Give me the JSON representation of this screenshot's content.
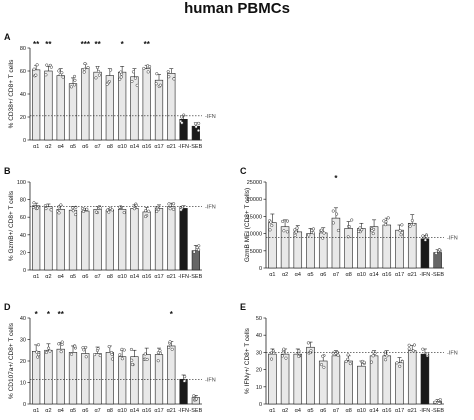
{
  "figure_title": "human PBMCs",
  "colors": {
    "bar_light": "#e8e8e8",
    "bar_dark": "#1a1a1a",
    "bar_mid": "#666666",
    "edge": "#222222"
  },
  "chart_data": [
    {
      "panel": "A",
      "type": "bar",
      "ylabel": "% CD38+/ CD8+ T cells",
      "ylim": [
        0,
        80
      ],
      "yticks": [
        0,
        20,
        40,
        60,
        80
      ],
      "ytick_labels": [
        "0",
        "20",
        "40",
        "60",
        "80"
      ],
      "categories": [
        "α1",
        "α2",
        "α4",
        "α5",
        "α6",
        "α7",
        "α8",
        "α10",
        "α14",
        "α16",
        "α17",
        "α21",
        "-IFN",
        "-SEB"
      ],
      "values": [
        61,
        60,
        56,
        49,
        62,
        59,
        56,
        59,
        55,
        62,
        52,
        58,
        18,
        12
      ],
      "errors": [
        4,
        4,
        6,
        5,
        4,
        5,
        6,
        5,
        7,
        3,
        5,
        4,
        3,
        3
      ],
      "bar_styles": [
        "light",
        "light",
        "light",
        "light",
        "light",
        "light",
        "light",
        "light",
        "light",
        "light",
        "light",
        "light",
        "dark",
        "dark"
      ],
      "significance": [
        "**",
        "**",
        "",
        "",
        "***",
        "**",
        "",
        "*",
        "",
        "**",
        "",
        "",
        "",
        ""
      ],
      "reference_line": {
        "value": 21,
        "label": "-IFN"
      },
      "legend": ""
    },
    {
      "panel": "B",
      "type": "bar",
      "ylabel": "% GzmB+/ CD8+ T cells",
      "ylim": [
        0,
        100
      ],
      "yticks": [
        0,
        20,
        40,
        60,
        80,
        100
      ],
      "ytick_labels": [
        "0",
        "20",
        "40",
        "60",
        "80",
        "100"
      ],
      "categories": [
        "α1",
        "α2",
        "α4",
        "α5",
        "α6",
        "α7",
        "α8",
        "α10",
        "α14",
        "α16",
        "α17",
        "α21",
        "-IFN",
        "-SEB"
      ],
      "values": [
        73,
        72,
        69,
        68,
        67,
        69,
        68,
        69,
        70,
        66,
        70,
        72,
        70,
        22
      ],
      "errors": [
        3,
        3,
        4,
        4,
        3,
        3,
        2,
        3,
        4,
        5,
        4,
        4,
        3,
        6
      ],
      "bar_styles": [
        "light",
        "light",
        "light",
        "light",
        "light",
        "light",
        "light",
        "light",
        "light",
        "light",
        "light",
        "light",
        "dark",
        "mid"
      ],
      "significance": [
        "",
        "",
        "",
        "",
        "",
        "",
        "",
        "",
        "",
        "",
        "",
        "",
        "",
        ""
      ],
      "reference_line": {
        "value": 72,
        "label": "-IFN"
      },
      "legend": ""
    },
    {
      "panel": "C",
      "type": "bar",
      "ylabel": "GzmB MFI (CD8+ T cells)",
      "ylim": [
        0,
        25000
      ],
      "yticks": [
        0,
        5000,
        10000,
        15000,
        20000,
        25000
      ],
      "ytick_labels": [
        "0",
        "5000",
        "10000",
        "15000",
        "20000",
        "25000"
      ],
      "categories": [
        "α1",
        "α2",
        "α4",
        "α5",
        "α6",
        "α7",
        "α8",
        "α10",
        "α14",
        "α16",
        "α17",
        "α21",
        "-IFN",
        "-SEB"
      ],
      "values": [
        13200,
        12000,
        10500,
        10000,
        10200,
        14500,
        11500,
        11500,
        12000,
        12500,
        11000,
        13000,
        8500,
        4500
      ],
      "errors": [
        2500,
        2000,
        1800,
        1500,
        1500,
        3000,
        2000,
        1500,
        2000,
        2000,
        1500,
        2500,
        1000,
        800
      ],
      "bar_styles": [
        "light",
        "light",
        "light",
        "light",
        "light",
        "light",
        "light",
        "light",
        "light",
        "light",
        "light",
        "light",
        "dark",
        "mid"
      ],
      "significance": [
        "",
        "",
        "",
        "",
        "",
        "*",
        "",
        "",
        "",
        "",
        "",
        "",
        "",
        ""
      ],
      "reference_line": {
        "value": 8800,
        "label": "-IFN"
      },
      "legend": ""
    },
    {
      "panel": "D",
      "type": "bar",
      "ylabel": "% CD107a+/ CD8+ T cells",
      "ylim": [
        0,
        40
      ],
      "yticks": [
        0,
        10,
        20,
        30,
        40
      ],
      "ytick_labels": [
        "0",
        "10",
        "20",
        "30",
        "40"
      ],
      "categories": [
        "α1",
        "α2",
        "α4",
        "α5",
        "α6",
        "α7",
        "α8",
        "α10",
        "α14",
        "α16",
        "α17",
        "α21",
        "-IFN",
        "-SEB"
      ],
      "values": [
        24.5,
        25,
        25.5,
        24,
        23.5,
        23.5,
        24,
        22,
        22,
        23,
        23,
        27,
        11.5,
        3
      ],
      "errors": [
        3,
        3,
        3,
        3,
        3,
        3,
        3,
        3,
        3,
        3,
        3,
        2,
        2,
        1
      ],
      "bar_styles": [
        "light",
        "light",
        "light",
        "light",
        "light",
        "light",
        "light",
        "light",
        "light",
        "light",
        "light",
        "light",
        "dark",
        "light"
      ],
      "significance": [
        "*",
        "*",
        "**",
        "",
        "",
        "",
        "",
        "",
        "",
        "",
        "",
        "*",
        "",
        ""
      ],
      "reference_line": {
        "value": 11.5,
        "label": "-IFN"
      },
      "legend": ""
    },
    {
      "panel": "E",
      "type": "bar",
      "ylabel": "% IFNγ+/ CD8+ T cells",
      "ylim": [
        0,
        50
      ],
      "yticks": [
        0,
        10,
        20,
        30,
        40,
        50
      ],
      "ytick_labels": [
        "0",
        "10",
        "20",
        "30",
        "40",
        "50"
      ],
      "categories": [
        "α1",
        "α2",
        "α4",
        "α5",
        "α6",
        "α7",
        "α8",
        "α10",
        "α14",
        "α16",
        "α17",
        "α21",
        "-IFN",
        "-SEB"
      ],
      "values": [
        29,
        29,
        29,
        33,
        25,
        28,
        25,
        22,
        28,
        28,
        24,
        31,
        29,
        1.5
      ],
      "errors": [
        3,
        3,
        3,
        3,
        3,
        3,
        3,
        3,
        3,
        3,
        3,
        3,
        3,
        1
      ],
      "bar_styles": [
        "light",
        "light",
        "light",
        "light",
        "light",
        "light",
        "light",
        "light",
        "light",
        "light",
        "light",
        "light",
        "dark",
        "light"
      ],
      "significance": [
        "",
        "",
        "",
        "",
        "",
        "",
        "",
        "",
        "",
        "",
        "",
        "",
        "",
        ""
      ],
      "reference_line": {
        "value": 30,
        "label": "-IFN"
      },
      "legend": ""
    }
  ]
}
